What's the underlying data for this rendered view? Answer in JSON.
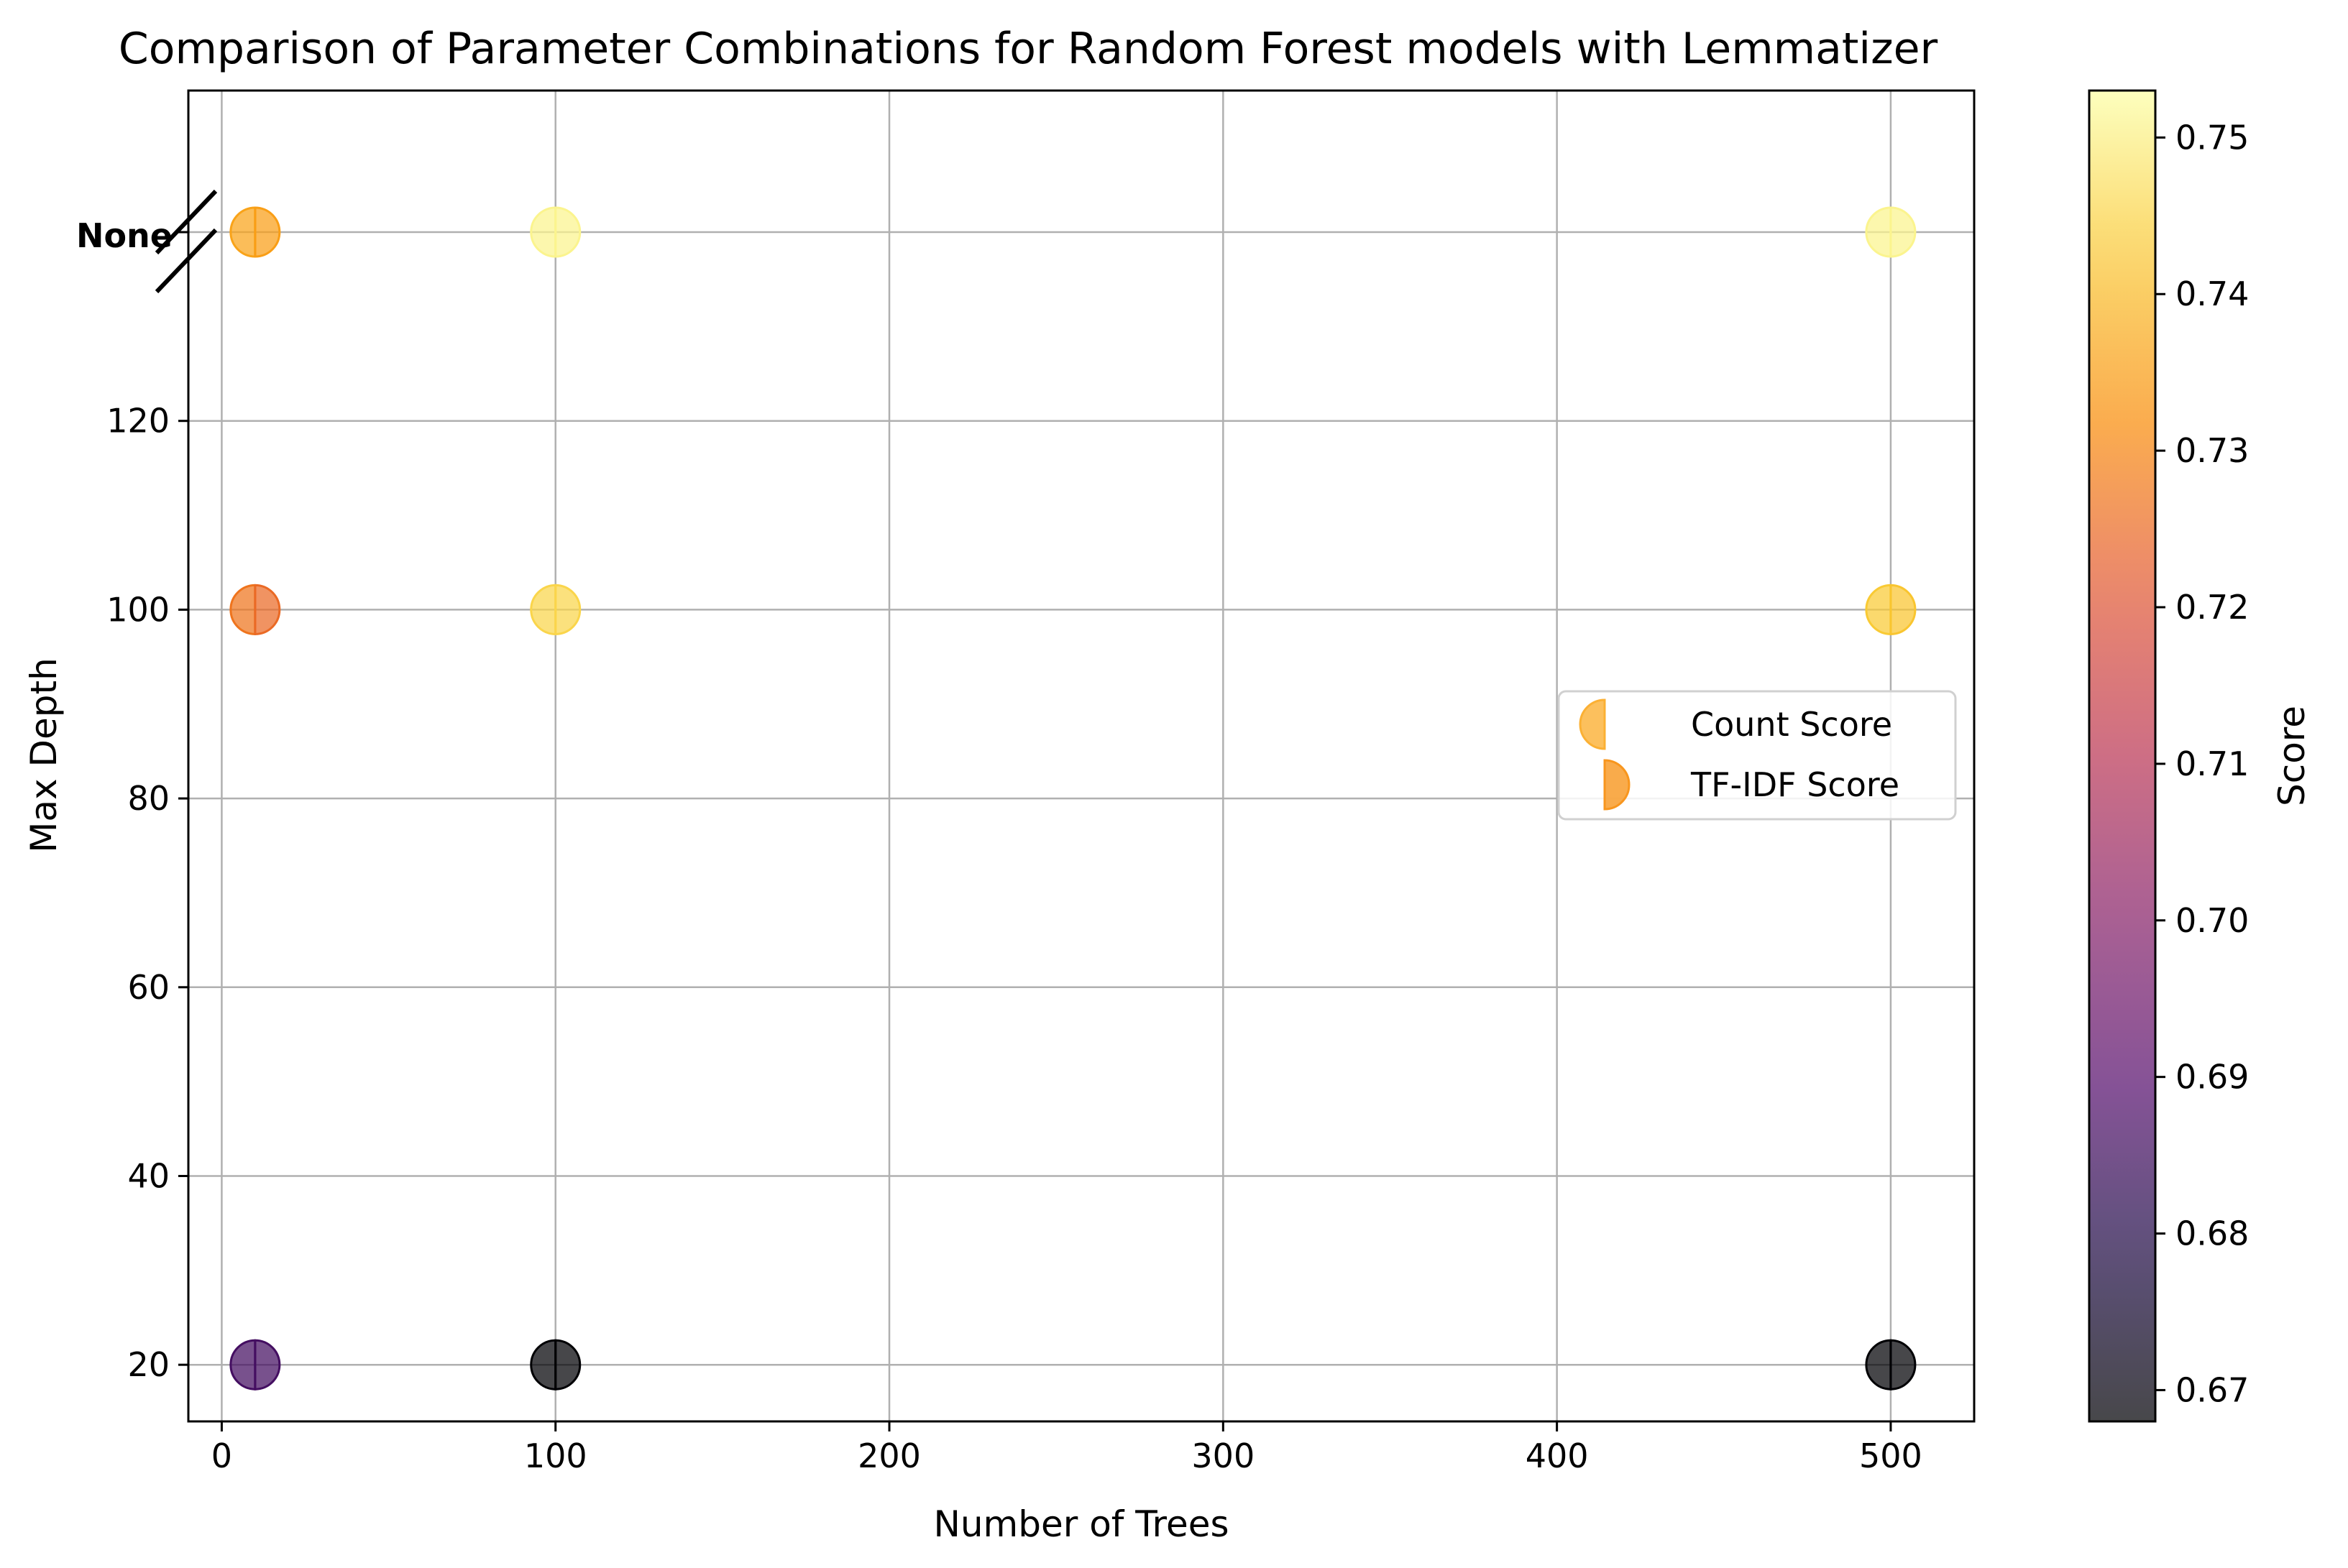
{
  "chart_data": {
    "type": "scatter",
    "title": "Comparison of Parameter Combinations for Random Forest models with Lemmatizer",
    "xlabel": "Number of Trees",
    "ylabel": "Max Depth",
    "colorbar_label": "Score",
    "xlim": [
      -10,
      525
    ],
    "ylim": [
      14,
      155
    ],
    "x_ticks": [
      0,
      100,
      200,
      300,
      400,
      500
    ],
    "y_ticks": [
      20,
      40,
      60,
      80,
      100,
      120
    ],
    "none_label": "None",
    "none_value": 140,
    "grid": true,
    "legend_position": "center-right",
    "colormap": "inferno",
    "color_range": [
      0.668,
      0.753
    ],
    "colorbar_ticks": [
      0.67,
      0.68,
      0.69,
      0.7,
      0.71,
      0.72,
      0.73,
      0.74,
      0.75
    ],
    "series": [
      {
        "name": "Count Score",
        "marker": "left-half-circle",
        "points": [
          {
            "x": 10,
            "y": 20,
            "score": 0.686
          },
          {
            "x": 10,
            "y": 100,
            "score": 0.727
          },
          {
            "x": 10,
            "y": "None",
            "score": 0.736
          },
          {
            "x": 100,
            "y": 20,
            "score": 0.668
          },
          {
            "x": 100,
            "y": 100,
            "score": 0.745
          },
          {
            "x": 100,
            "y": "None",
            "score": 0.751
          },
          {
            "x": 500,
            "y": 20,
            "score": 0.668
          },
          {
            "x": 500,
            "y": 100,
            "score": 0.743
          },
          {
            "x": 500,
            "y": "None",
            "score": 0.751
          }
        ]
      },
      {
        "name": "TF-IDF Score",
        "marker": "right-half-circle",
        "points": [
          {
            "x": 10,
            "y": 20,
            "score": 0.686
          },
          {
            "x": 10,
            "y": 100,
            "score": 0.725
          },
          {
            "x": 10,
            "y": "None",
            "score": 0.735
          },
          {
            "x": 100,
            "y": 20,
            "score": 0.668
          },
          {
            "x": 100,
            "y": 100,
            "score": 0.745
          },
          {
            "x": 100,
            "y": "None",
            "score": 0.751
          },
          {
            "x": 500,
            "y": 20,
            "score": 0.668
          },
          {
            "x": 500,
            "y": 100,
            "score": 0.742
          },
          {
            "x": 500,
            "y": "None",
            "score": 0.751
          }
        ]
      }
    ],
    "legend_colors": [
      "#fbb034",
      "#f8961e"
    ]
  }
}
